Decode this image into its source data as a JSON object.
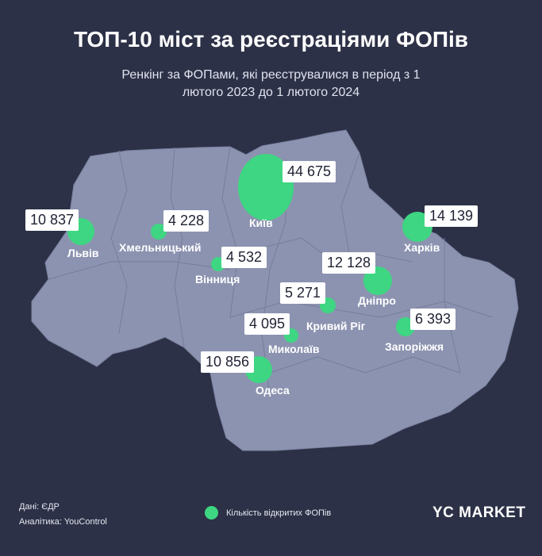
{
  "title": "ТОП-10 міст за реєстраціями ФОПів",
  "subtitle_line1": "Ренкінг за ФОПами, які реєструвалися в період з 1",
  "subtitle_line2": "лютого 2023 до 1 лютого 2024",
  "colors": {
    "background": "#2d3147",
    "map": "#8c93b0",
    "bubble": "#3ed682"
  },
  "cities": [
    {
      "name": "Київ",
      "value": "44 675",
      "count": 44675
    },
    {
      "name": "Харків",
      "value": "14 139",
      "count": 14139
    },
    {
      "name": "Дніпро",
      "value": "12 128",
      "count": 12128
    },
    {
      "name": "Одеса",
      "value": "10 856",
      "count": 10856
    },
    {
      "name": "Львів",
      "value": "10 837",
      "count": 10837
    },
    {
      "name": "Запоріжжя",
      "value": "6 393",
      "count": 6393
    },
    {
      "name": "Кривий Ріг",
      "value": "5 271",
      "count": 5271
    },
    {
      "name": "Вінниця",
      "value": "4 532",
      "count": 4532
    },
    {
      "name": "Хмельницький",
      "value": "4 228",
      "count": 4228
    },
    {
      "name": "Миколаїв",
      "value": "4 095",
      "count": 4095
    }
  ],
  "footer": {
    "source": "Дані: ЄДР",
    "analytics": "Аналітика: YouControl",
    "legend": "Кількість відкритих ФОПів",
    "logo": "YC MARKET"
  }
}
